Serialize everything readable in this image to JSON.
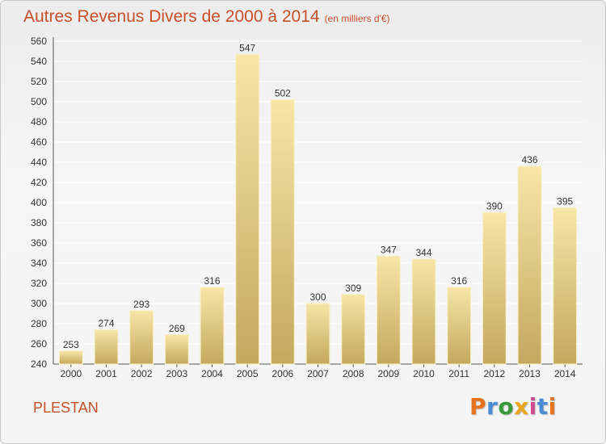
{
  "header": {
    "title": "Autres Revenus Divers de 2000 à 2014",
    "subtitle": "(en milliers d'€)"
  },
  "location": "PLESTAN",
  "logo": {
    "letters": [
      "P",
      "r",
      "o",
      "x",
      "i",
      "t",
      "i"
    ],
    "colors": [
      "#e8731e",
      "#4a8bd6",
      "#3a9a3a",
      "#e8a51e",
      "#d14b8f",
      "#4a8bd6",
      "#e8731e"
    ]
  },
  "colors": {
    "title": "#c8502b",
    "bar_light": "#f5e3a4",
    "bar_dark": "#c9ad62",
    "grid": "#ffffff"
  },
  "chart_data": {
    "type": "bar",
    "categories": [
      "2000",
      "2001",
      "2002",
      "2003",
      "2004",
      "2005",
      "2006",
      "2007",
      "2008",
      "2009",
      "2010",
      "2011",
      "2012",
      "2013",
      "2014"
    ],
    "values": [
      253,
      274,
      293,
      269,
      316,
      547,
      502,
      300,
      309,
      347,
      344,
      316,
      390,
      436,
      395
    ],
    "title": "Autres Revenus Divers de 2000 à 2014",
    "xlabel": "",
    "ylabel": "",
    "ylim": [
      240,
      560
    ],
    "yticks": [
      240,
      260,
      280,
      300,
      320,
      340,
      360,
      380,
      400,
      420,
      440,
      460,
      480,
      500,
      520,
      540,
      560
    ],
    "grid": true,
    "data_labels": true
  }
}
